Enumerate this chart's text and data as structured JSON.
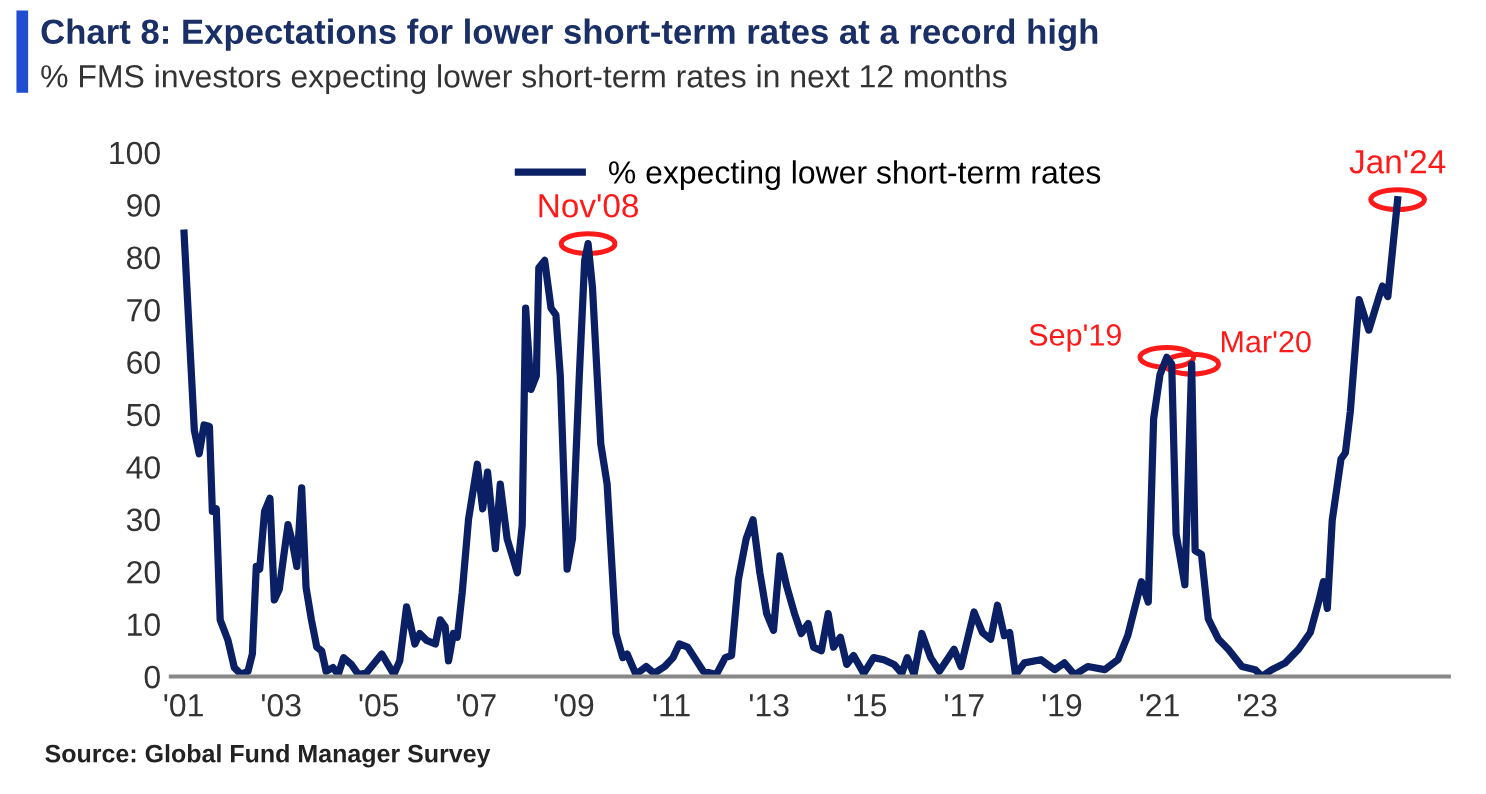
{
  "chart_data": {
    "type": "line",
    "title": "Chart 8: Expectations for lower short-term rates at a record high",
    "subtitle": "% FMS investors expecting lower short-term rates in next 12 months",
    "annotations": [
      {
        "text": "Nov'08",
        "x": 2009.29,
        "y": 82.6
      },
      {
        "text": "Sep'19",
        "x": 2021.15,
        "y": 60.9
      },
      {
        "text": "Mar'20",
        "x": 2021.66,
        "y": 59.6
      },
      {
        "text": "Jan'24",
        "x": 2025.88,
        "y": 91
      },
      "Source: Global Fund Manager Survey"
    ],
    "series": [
      {
        "name": "% expecting lower short-term rates",
        "color": "#0b1f65",
        "x": [
          2001.01,
          2001.22,
          2001.32,
          2001.42,
          2001.53,
          2001.59,
          2001.67,
          2001.75,
          2001.91,
          2002.04,
          2002.18,
          2002.32,
          2002.41,
          2002.49,
          2002.56,
          2002.66,
          2002.77,
          2002.86,
          2002.96,
          2003.14,
          2003.23,
          2003.32,
          2003.42,
          2003.51,
          2003.62,
          2003.73,
          2003.83,
          2003.92,
          2004.06,
          2004.17,
          2004.28,
          2004.44,
          2004.58,
          2004.74,
          2005.06,
          2005.31,
          2005.43,
          2005.57,
          2005.74,
          2005.84,
          2005.98,
          2006.16,
          2006.26,
          2006.36,
          2006.43,
          2006.53,
          2006.61,
          2006.71,
          2006.84,
          2007.02,
          2007.13,
          2007.23,
          2007.39,
          2007.49,
          2007.63,
          2007.84,
          2007.94,
          2008.01,
          2008.12,
          2008.23,
          2008.28,
          2008.4,
          2008.53,
          2008.63,
          2008.72,
          2008.86,
          2008.97,
          2009.11,
          2009.22,
          2009.29,
          2009.38,
          2009.55,
          2009.68,
          2009.86,
          2010.0,
          2010.09,
          2010.27,
          2010.48,
          2010.64,
          2010.86,
          2011.03,
          2011.16,
          2011.33,
          2011.47,
          2011.65,
          2011.92,
          2012.1,
          2012.23,
          2012.37,
          2012.53,
          2012.67,
          2012.81,
          2012.95,
          2013.09,
          2013.22,
          2013.36,
          2013.52,
          2013.66,
          2013.8,
          2013.91,
          2014.07,
          2014.21,
          2014.32,
          2014.46,
          2014.59,
          2014.73,
          2014.94,
          2015.14,
          2015.35,
          2015.56,
          2015.72,
          2015.83,
          2015.97,
          2016.13,
          2016.31,
          2016.49,
          2016.79,
          2016.93,
          2017.2,
          2017.37,
          2017.54,
          2017.68,
          2017.82,
          2017.93,
          2018.05,
          2018.23,
          2018.57,
          2018.85,
          2019.05,
          2019.26,
          2019.53,
          2019.88,
          2020.15,
          2020.35,
          2020.63,
          2020.77,
          2020.88,
          2021.01,
          2021.15,
          2021.25,
          2021.34,
          2021.52,
          2021.66,
          2021.73,
          2021.86,
          2022.0,
          2022.21,
          2022.41,
          2022.69,
          2022.96,
          2023.1,
          2023.3,
          2023.58,
          2023.85,
          2024.09,
          2024.26,
          2024.36,
          2024.44,
          2024.54,
          2024.72,
          2024.81,
          2024.91,
          2025.09,
          2025.29,
          2025.5,
          2025.57,
          2025.68,
          2025.88
        ],
        "values": [
          84.6,
          47,
          42.5,
          48,
          47.7,
          31.5,
          32,
          10.8,
          6.9,
          1.7,
          0.4,
          1,
          4.3,
          21,
          20.5,
          31.5,
          34,
          14.6,
          16.6,
          29,
          25.6,
          21,
          36,
          17,
          10.8,
          5.6,
          4.9,
          1,
          1.7,
          0.4,
          3.6,
          2.3,
          0.4,
          0.6,
          4.3,
          0.4,
          3,
          13.3,
          6.2,
          8.2,
          6.9,
          6.2,
          10.8,
          9.5,
          3,
          8.2,
          7.5,
          16,
          30,
          40.5,
          32,
          39,
          24.4,
          36.7,
          26.3,
          19.8,
          28.9,
          70.3,
          54.8,
          57.4,
          78,
          79.4,
          70.3,
          69,
          57.4,
          20.5,
          26.3,
          57.4,
          79.4,
          82.6,
          74.2,
          44.4,
          36.7,
          8.2,
          3.6,
          4.3,
          0.4,
          1.9,
          0.6,
          1.9,
          3.6,
          6.2,
          5.6,
          3.6,
          1,
          0.4,
          3.6,
          4,
          18.5,
          26.3,
          29.9,
          19.8,
          12,
          8.8,
          23,
          17.2,
          12,
          8.2,
          10.1,
          5.6,
          4.9,
          12,
          5.6,
          7.5,
          2.3,
          4,
          0.6,
          3.6,
          3.2,
          2.3,
          0.6,
          3.6,
          0.4,
          8.2,
          3.6,
          1,
          5.2,
          1.9,
          12.3,
          8.4,
          7.1,
          13.6,
          7.8,
          8.4,
          0.3,
          2.6,
          3.2,
          1.3,
          2.6,
          0.3,
          1.9,
          1.3,
          3.2,
          7.8,
          18.1,
          14.2,
          49.2,
          57.6,
          60.9,
          59.6,
          27.2,
          17.5,
          59.6,
          24,
          23.3,
          11,
          7.1,
          5.2,
          1.9,
          1.3,
          0,
          1.3,
          2.6,
          5.2,
          8.4,
          14.2,
          18.1,
          13,
          29.8,
          41.5,
          42.7,
          50.5,
          71.9,
          66.1,
          72.5,
          74.5,
          72.5,
          91
        ]
      }
    ],
    "xlim": [
      2000.74,
      2026.93
    ],
    "xticks": [
      {
        "value": 2001,
        "label": "'01"
      },
      {
        "value": 2003,
        "label": "'03"
      },
      {
        "value": 2005,
        "label": "'05"
      },
      {
        "value": 2007,
        "label": "'07"
      },
      {
        "value": 2009,
        "label": "'09"
      },
      {
        "value": 2011,
        "label": "'11"
      },
      {
        "value": 2013,
        "label": "'13"
      },
      {
        "value": 2015,
        "label": "'15"
      },
      {
        "value": 2017,
        "label": "'17"
      },
      {
        "value": 2019,
        "label": "'19"
      },
      {
        "value": 2021,
        "label": "'21"
      },
      {
        "value": 2023,
        "label": "'23"
      }
    ],
    "ylim": [
      0,
      100
    ],
    "yticks": [
      0,
      10,
      20,
      30,
      40,
      50,
      60,
      70,
      80,
      90,
      100
    ],
    "legend": "top",
    "grid": false,
    "line_style": "solid",
    "marker": "none"
  }
}
